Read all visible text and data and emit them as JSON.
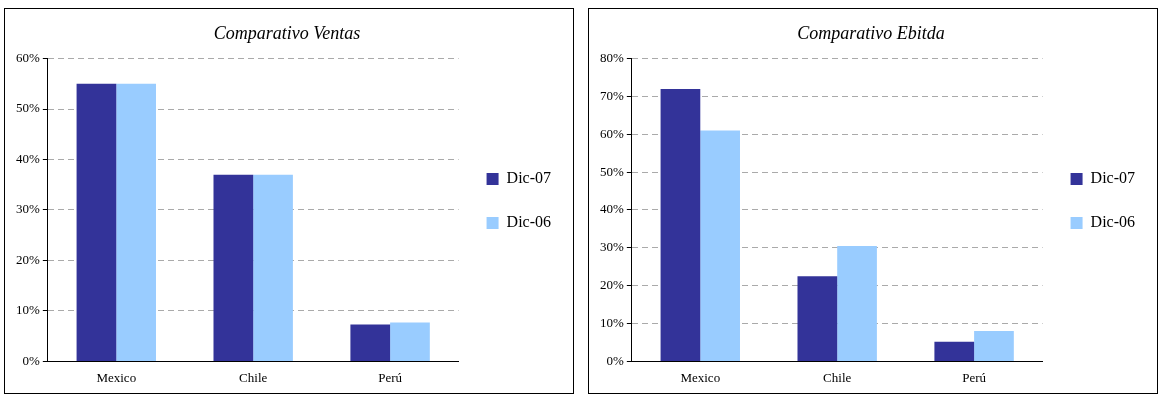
{
  "chart_data": [
    {
      "type": "bar",
      "title": "Comparativo Ventas",
      "categories": [
        "Mexico",
        "Chile",
        "Perú"
      ],
      "series": [
        {
          "name": "Dic-07",
          "color": "#333399",
          "values": [
            55,
            37,
            7.3
          ]
        },
        {
          "name": "Dic-06",
          "color": "#99ccff",
          "values": [
            55,
            37,
            7.7
          ]
        }
      ],
      "ylim": [
        0,
        60
      ],
      "yticks": [
        {
          "value": 0,
          "label": "0%"
        },
        {
          "value": 10,
          "label": "10%"
        },
        {
          "value": 20,
          "label": "20%"
        },
        {
          "value": 30,
          "label": "30%"
        },
        {
          "value": 40,
          "label": "40%"
        },
        {
          "value": 50,
          "label": "50%"
        },
        {
          "value": 60,
          "label": "60%"
        }
      ],
      "grid": "y",
      "legend": "right"
    },
    {
      "type": "bar",
      "title": "Comparativo Ebitda",
      "categories": [
        "Mexico",
        "Chile",
        "Perú"
      ],
      "series": [
        {
          "name": "Dic-07",
          "color": "#333399",
          "values": [
            72,
            22.5,
            5.2
          ]
        },
        {
          "name": "Dic-06",
          "color": "#99ccff",
          "values": [
            61,
            30.5,
            8
          ]
        }
      ],
      "ylim": [
        0,
        80
      ],
      "yticks": [
        {
          "value": 0,
          "label": "0%"
        },
        {
          "value": 10,
          "label": "10%"
        },
        {
          "value": 20,
          "label": "20%"
        },
        {
          "value": 30,
          "label": "30%"
        },
        {
          "value": 40,
          "label": "40%"
        },
        {
          "value": 50,
          "label": "50%"
        },
        {
          "value": 60,
          "label": "60%"
        },
        {
          "value": 70,
          "label": "70%"
        },
        {
          "value": 80,
          "label": "80%"
        }
      ],
      "grid": "y",
      "legend": "right"
    }
  ]
}
